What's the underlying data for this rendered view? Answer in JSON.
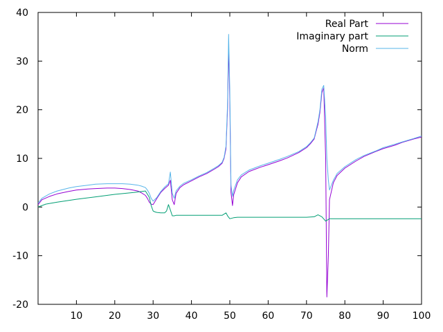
{
  "chart_data": {
    "type": "line",
    "title": "",
    "xlabel": "",
    "ylabel": "",
    "xlim": [
      0,
      100
    ],
    "ylim": [
      -20,
      40
    ],
    "xticks": [
      10,
      20,
      30,
      40,
      50,
      60,
      70,
      80,
      90,
      100
    ],
    "yticks": [
      -20,
      -10,
      0,
      10,
      20,
      30,
      40
    ],
    "grid": false,
    "legend_position": "top-right",
    "series": [
      {
        "name": "Real Part",
        "color": "#9400d3",
        "x": [
          0,
          1,
          3,
          5,
          8,
          10,
          13,
          15,
          18,
          20,
          22,
          24,
          26,
          27,
          28,
          28.5,
          29,
          29.5,
          30,
          31,
          32,
          33,
          34,
          34.5,
          35,
          35.5,
          36,
          37,
          38,
          40,
          42,
          44,
          46,
          47,
          48,
          48.5,
          49,
          49.4,
          49.7,
          50,
          50.3,
          50.7,
          51,
          52,
          53,
          55,
          58,
          60,
          63,
          65,
          68,
          70,
          71,
          72,
          72.5,
          73,
          73.5,
          74,
          74.5,
          75,
          75.3,
          75.7,
          76,
          77,
          78,
          80,
          83,
          85,
          88,
          90,
          93,
          95,
          98,
          100
        ],
        "y": [
          0.5,
          1.5,
          2.2,
          2.7,
          3.2,
          3.5,
          3.7,
          3.8,
          3.9,
          3.9,
          3.8,
          3.6,
          3.3,
          2.9,
          2.4,
          1.8,
          1.0,
          0.6,
          0.5,
          1.8,
          3.0,
          3.8,
          4.5,
          5.5,
          1.5,
          0.5,
          2.8,
          4.0,
          4.6,
          5.4,
          6.2,
          6.9,
          7.8,
          8.3,
          9.0,
          10.0,
          12.0,
          20.0,
          33.0,
          22.0,
          3.0,
          0.3,
          2.5,
          5.0,
          6.2,
          7.3,
          8.2,
          8.7,
          9.5,
          10.1,
          11.2,
          12.2,
          13.0,
          14.0,
          15.5,
          17.0,
          19.5,
          23.5,
          24.5,
          10.0,
          -18.5,
          -10.0,
          1.5,
          5.0,
          6.5,
          8.0,
          9.5,
          10.4,
          11.4,
          12.0,
          12.7,
          13.3,
          14.0,
          14.4
        ]
      },
      {
        "name": "Imaginary part",
        "color": "#009e73",
        "x": [
          0,
          2,
          5,
          10,
          15,
          20,
          25,
          28,
          29,
          29.5,
          30,
          30.5,
          31,
          32,
          33,
          33.5,
          34,
          34.5,
          35,
          35.5,
          36,
          40,
          45,
          48,
          49,
          49.5,
          50,
          51,
          52,
          55,
          60,
          65,
          70,
          72,
          73,
          74,
          75,
          76,
          80,
          85,
          90,
          95,
          100
        ],
        "y": [
          0.0,
          0.6,
          1.0,
          1.6,
          2.1,
          2.6,
          3.0,
          3.3,
          2.0,
          0.3,
          -0.8,
          -1.0,
          -1.1,
          -1.2,
          -1.2,
          -0.8,
          0.5,
          -0.6,
          -1.8,
          -1.8,
          -1.7,
          -1.7,
          -1.7,
          -1.7,
          -1.2,
          -1.9,
          -2.4,
          -2.2,
          -2.1,
          -2.1,
          -2.1,
          -2.1,
          -2.1,
          -2.0,
          -1.6,
          -2.0,
          -2.9,
          -2.4,
          -2.4,
          -2.4,
          -2.4,
          -2.4,
          -2.4
        ]
      },
      {
        "name": "Norm",
        "color": "#56b4e9",
        "x": [
          0,
          1,
          3,
          5,
          8,
          10,
          13,
          15,
          18,
          20,
          22,
          24,
          26,
          27,
          28,
          28.5,
          29,
          29.5,
          30,
          31,
          32,
          33,
          34,
          34.5,
          35,
          35.5,
          36,
          37,
          38,
          40,
          42,
          44,
          46,
          47,
          48,
          48.5,
          49,
          49.4,
          49.7,
          50,
          50.3,
          50.7,
          51,
          52,
          53,
          55,
          58,
          60,
          63,
          65,
          68,
          70,
          71,
          72,
          72.5,
          73,
          73.5,
          74,
          74.5,
          75,
          75.3,
          75.7,
          76,
          77,
          78,
          80,
          83,
          85,
          88,
          90,
          93,
          95,
          98,
          100
        ],
        "y": [
          0.8,
          1.8,
          2.7,
          3.3,
          3.9,
          4.2,
          4.5,
          4.7,
          4.8,
          4.8,
          4.8,
          4.7,
          4.5,
          4.3,
          4.0,
          3.5,
          2.8,
          1.8,
          1.2,
          2.0,
          3.2,
          4.1,
          4.8,
          7.2,
          2.8,
          1.8,
          3.3,
          4.3,
          4.9,
          5.6,
          6.4,
          7.1,
          8.0,
          8.5,
          9.2,
          10.2,
          12.5,
          21.0,
          35.5,
          24.0,
          4.5,
          2.2,
          3.4,
          5.6,
          6.6,
          7.6,
          8.5,
          9.0,
          9.8,
          10.4,
          11.4,
          12.4,
          13.2,
          14.2,
          15.8,
          17.5,
          20.0,
          24.2,
          25.0,
          18.5,
          10.0,
          5.5,
          3.5,
          5.5,
          6.9,
          8.3,
          9.8,
          10.6,
          11.5,
          12.2,
          12.9,
          13.4,
          14.1,
          14.6
        ]
      }
    ]
  }
}
